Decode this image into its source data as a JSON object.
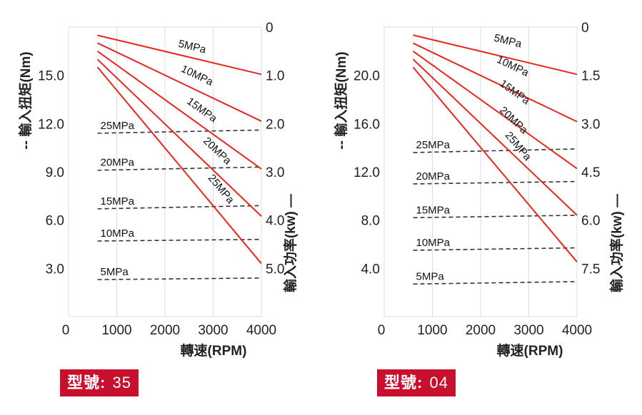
{
  "panels": [
    {
      "x_axis": {
        "label": "轉速(RPM)",
        "ticks": [
          0,
          1000,
          2000,
          3000,
          4000
        ],
        "tick_labels": [
          "0",
          "1000",
          "2000",
          "3000",
          "4000"
        ],
        "range": [
          0,
          4000
        ]
      },
      "torque_axis": {
        "label": "-- 輸入扭矩(Nm)",
        "ticks": [
          3,
          6,
          9,
          12,
          15
        ],
        "tick_labels": [
          "3.0",
          "6.0",
          "9.0",
          "12.0",
          "15.0"
        ],
        "range": [
          0,
          18
        ]
      },
      "power_axis": {
        "label": "輸入功率(kw) —",
        "ticks": [
          0,
          1,
          2,
          3,
          4,
          5
        ],
        "tick_labels": [
          "0",
          "1.0",
          "2.0",
          "3.0",
          "4.0",
          "5.0"
        ],
        "range": [
          0,
          6
        ]
      },
      "badge": {
        "label": "型號:",
        "model": "35"
      },
      "chart_data": {
        "type": "line",
        "xlim": [
          0,
          4000
        ],
        "torque_series": [
          {
            "name": "25MPa",
            "x": [
              600,
              4000
            ],
            "y": [
              11.4,
              11.6
            ]
          },
          {
            "name": "20MPa",
            "x": [
              600,
              4000
            ],
            "y": [
              9.1,
              9.3
            ]
          },
          {
            "name": "15MPa",
            "x": [
              600,
              4000
            ],
            "y": [
              6.7,
              6.9
            ]
          },
          {
            "name": "10MPa",
            "x": [
              600,
              4000
            ],
            "y": [
              4.7,
              4.8
            ]
          },
          {
            "name": "5MPa",
            "x": [
              600,
              4000
            ],
            "y": [
              2.3,
              2.4
            ]
          }
        ],
        "power_series": [
          {
            "name": "5MPa",
            "x": [
              600,
              4000
            ],
            "y": [
              0.17,
              0.98
            ]
          },
          {
            "name": "10MPa",
            "x": [
              600,
              4000
            ],
            "y": [
              0.33,
              1.95
            ]
          },
          {
            "name": "15MPa",
            "x": [
              600,
              4000
            ],
            "y": [
              0.5,
              2.94
            ]
          },
          {
            "name": "20MPa",
            "x": [
              600,
              4000
            ],
            "y": [
              0.67,
              3.92
            ]
          },
          {
            "name": "25MPa",
            "x": [
              600,
              4000
            ],
            "y": [
              0.83,
              4.9
            ]
          }
        ]
      }
    },
    {
      "x_axis": {
        "label": "轉速(RPM)",
        "ticks": [
          0,
          1000,
          2000,
          3000,
          4000
        ],
        "tick_labels": [
          "0",
          "1000",
          "2000",
          "3000",
          "4000"
        ],
        "range": [
          0,
          4000
        ]
      },
      "torque_axis": {
        "label": "-- 輸入扭矩(Nm)",
        "ticks": [
          4,
          8,
          12,
          16,
          20
        ],
        "tick_labels": [
          "4.0",
          "8.0",
          "12.0",
          "16.0",
          "20.0"
        ],
        "range": [
          0,
          24
        ]
      },
      "power_axis": {
        "label": "輸入功率(kw) —",
        "ticks": [
          0,
          1.5,
          3,
          4.5,
          6,
          7.5
        ],
        "tick_labels": [
          "0",
          "1.5",
          "3.0",
          "4.5",
          "6.0",
          "7.5"
        ],
        "range": [
          0,
          9
        ]
      },
      "badge": {
        "label": "型號:",
        "model": "04"
      },
      "chart_data": {
        "type": "line",
        "xlim": [
          0,
          4000
        ],
        "torque_series": [
          {
            "name": "25MPa",
            "x": [
              600,
              4000
            ],
            "y": [
              13.6,
              13.9
            ]
          },
          {
            "name": "20MPa",
            "x": [
              600,
              4000
            ],
            "y": [
              11.0,
              11.2
            ]
          },
          {
            "name": "15MPa",
            "x": [
              600,
              4000
            ],
            "y": [
              8.2,
              8.4
            ]
          },
          {
            "name": "10MPa",
            "x": [
              600,
              4000
            ],
            "y": [
              5.5,
              5.7
            ]
          },
          {
            "name": "5MPa",
            "x": [
              600,
              4000
            ],
            "y": [
              2.7,
              2.9
            ]
          }
        ],
        "power_series": [
          {
            "name": "5MPa",
            "x": [
              600,
              4000
            ],
            "y": [
              0.25,
              1.47
            ]
          },
          {
            "name": "10MPa",
            "x": [
              600,
              4000
            ],
            "y": [
              0.5,
              2.94
            ]
          },
          {
            "name": "15MPa",
            "x": [
              600,
              4000
            ],
            "y": [
              0.75,
              4.4
            ]
          },
          {
            "name": "20MPa",
            "x": [
              600,
              4000
            ],
            "y": [
              1.0,
              5.85
            ]
          },
          {
            "name": "25MPa",
            "x": [
              600,
              4000
            ],
            "y": [
              1.25,
              7.3
            ]
          }
        ]
      }
    }
  ],
  "colors": {
    "power_line": "#e8261f",
    "torque_line": "#333333",
    "grid": "#dcdcdc",
    "badge": "#c8102e"
  }
}
